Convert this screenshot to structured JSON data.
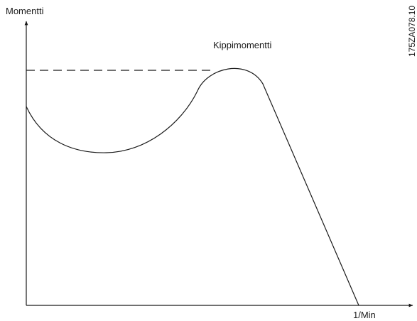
{
  "y_axis_label": "Momentti",
  "x_axis_label": "1/Min",
  "peak_label": "Kippimomentti",
  "figure_code": "175ZA078.10"
}
